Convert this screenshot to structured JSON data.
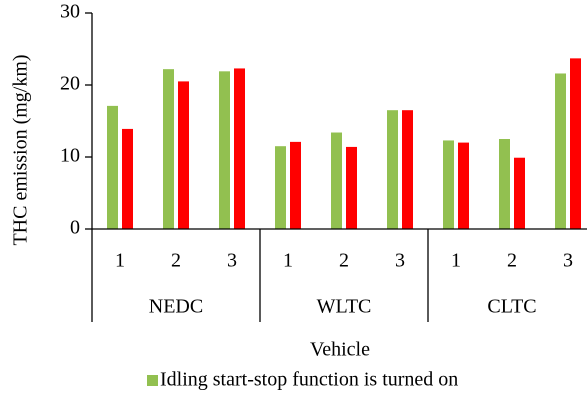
{
  "chart_data": {
    "type": "bar",
    "y_label": "THC  emission (mg/km)",
    "x_label": "Vehicle",
    "categories": [
      "1",
      "2",
      "3",
      "1",
      "2",
      "3",
      "1",
      "2",
      "3"
    ],
    "category_groups": [
      "NEDC",
      "WLTC",
      "CLTC"
    ],
    "series": [
      {
        "name": "Idling start-stop function is turned on",
        "color": "#92c050",
        "values": [
          17.1,
          22.2,
          21.9,
          11.5,
          13.4,
          16.5,
          12.3,
          12.5,
          21.6
        ]
      },
      {
        "color": "#ff0000",
        "values": [
          13.9,
          20.5,
          22.3,
          12.1,
          11.4,
          16.5,
          12.0,
          9.9,
          23.7
        ]
      }
    ],
    "ylim": [
      0,
      30
    ],
    "yticks": [
      0,
      10,
      20,
      30
    ]
  }
}
